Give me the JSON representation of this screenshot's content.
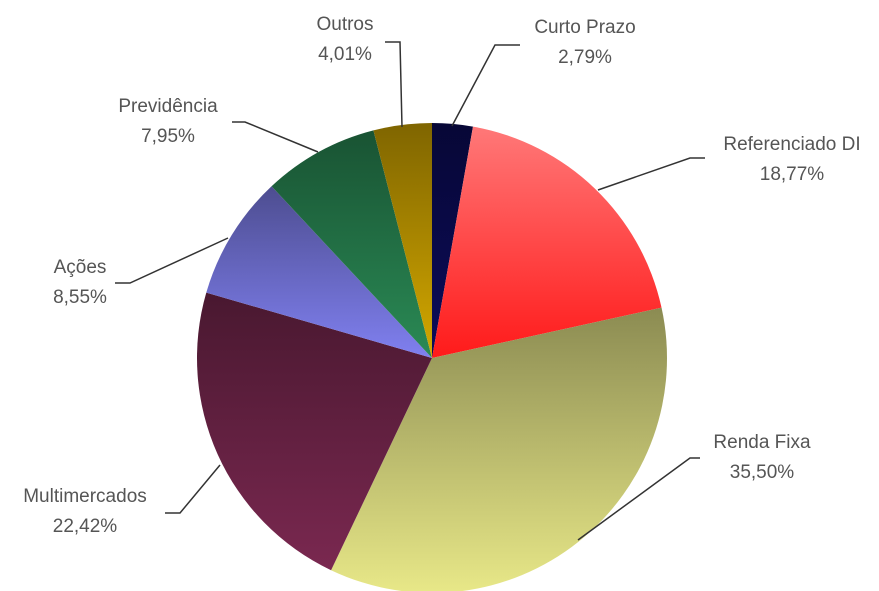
{
  "chart_data": {
    "type": "pie",
    "categories": [
      "Curto Prazo",
      "Referenciado DI",
      "Renda Fixa",
      "Multimercados",
      "Ações",
      "Previdência",
      "Outros"
    ],
    "values": [
      2.79,
      18.77,
      35.5,
      22.42,
      8.55,
      7.95,
      4.01
    ],
    "value_labels": [
      "2,79%",
      "18,77%",
      "35,50%",
      "22,42%",
      "8,55%",
      "7,95%",
      "4,01%"
    ],
    "colors": [
      "#0c0c5a",
      "#ff3a3a",
      "#e8e888",
      "#7a2850",
      "#8080f0",
      "#2a8a55",
      "#d4a800"
    ]
  }
}
